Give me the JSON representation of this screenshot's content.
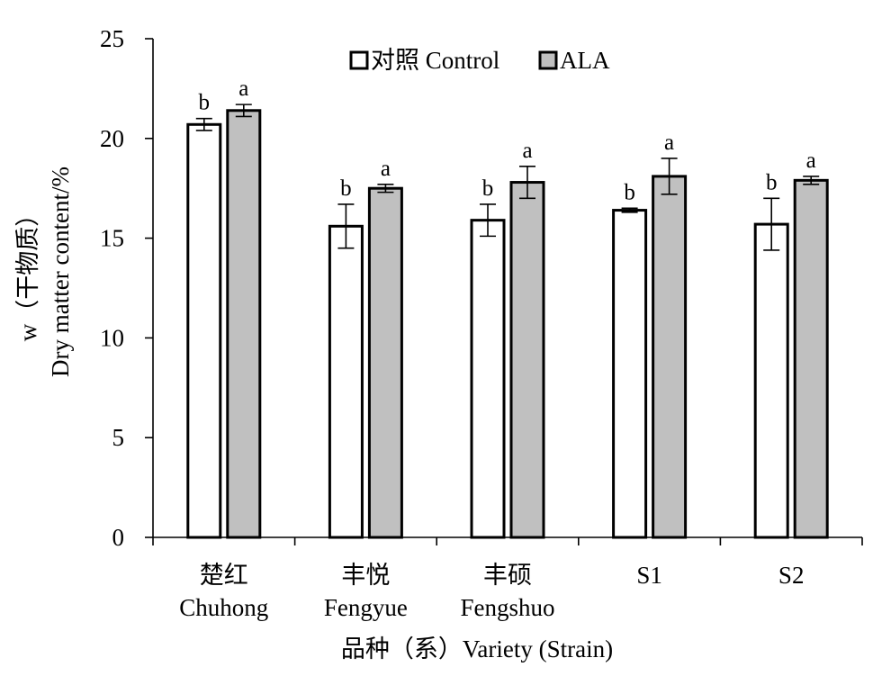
{
  "chart_data": {
    "type": "bar",
    "categories": [
      {
        "zh": "楚红",
        "en": "Chuhong"
      },
      {
        "zh": "丰悦",
        "en": "Fengyue"
      },
      {
        "zh": "丰硕",
        "en": "Fengshuo"
      },
      {
        "zh": "S1",
        "en": ""
      },
      {
        "zh": "S2",
        "en": ""
      }
    ],
    "series": [
      {
        "name": "对照 Control",
        "color": "#ffffff",
        "values": [
          20.7,
          15.6,
          15.9,
          16.4,
          15.7
        ],
        "errors": [
          0.3,
          1.1,
          0.8,
          0.1,
          1.3
        ],
        "significance": [
          "b",
          "b",
          "b",
          "b",
          "b"
        ]
      },
      {
        "name": "ALA",
        "color": "#c0c0c0",
        "values": [
          21.4,
          17.5,
          17.8,
          18.1,
          17.9
        ],
        "errors": [
          0.3,
          0.2,
          0.8,
          0.9,
          0.2
        ],
        "significance": [
          "a",
          "a",
          "a",
          "a",
          "a"
        ]
      }
    ],
    "ylabel_line1": "w（干物质）",
    "ylabel_line2": "Dry matter content/%",
    "xlabel": "品种（系）Variety (Strain)",
    "ylim": [
      0,
      25
    ],
    "yticks": [
      0,
      5,
      10,
      15,
      20,
      25
    ],
    "grid": false,
    "legend_position": "top-center"
  }
}
